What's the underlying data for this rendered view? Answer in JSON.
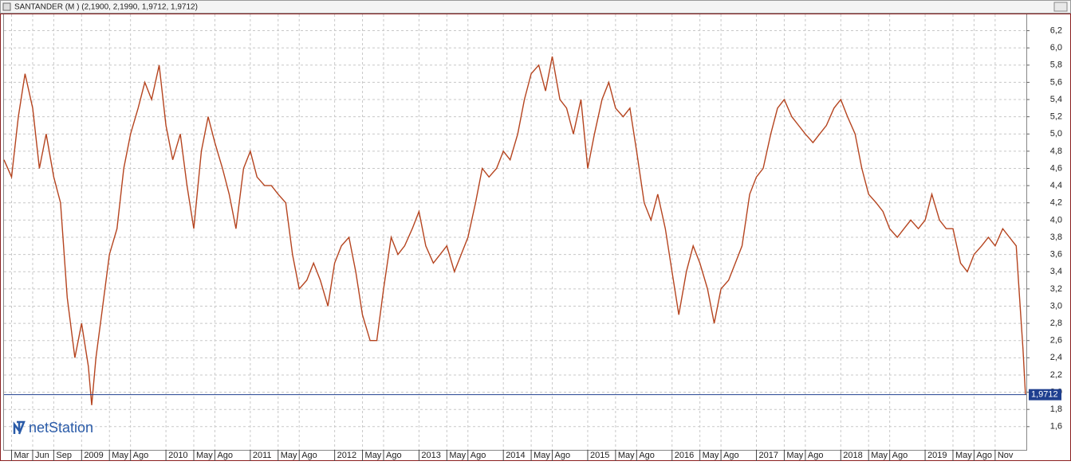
{
  "chart_data": {
    "type": "line",
    "title": "SANTANDER (M ) (2,1900, 2,1990, 1,9712, 1,9712)",
    "brand": "netStation",
    "grid": true,
    "xlim": [
      2008.08,
      2020.2
    ],
    "ylim": [
      1.33,
      6.39
    ],
    "yticks": [
      {
        "value": 1.6,
        "label": "1,6"
      },
      {
        "value": 1.8,
        "label": "1,8"
      },
      {
        "value": 2.0,
        "label": "2,0"
      },
      {
        "value": 2.2,
        "label": "2,2"
      },
      {
        "value": 2.4,
        "label": "2,4"
      },
      {
        "value": 2.6,
        "label": "2,6"
      },
      {
        "value": 2.8,
        "label": "2,8"
      },
      {
        "value": 3.0,
        "label": "3,0"
      },
      {
        "value": 3.2,
        "label": "3,2"
      },
      {
        "value": 3.4,
        "label": "3,4"
      },
      {
        "value": 3.6,
        "label": "3,6"
      },
      {
        "value": 3.8,
        "label": "3,8"
      },
      {
        "value": 4.0,
        "label": "4,0"
      },
      {
        "value": 4.2,
        "label": "4,2"
      },
      {
        "value": 4.4,
        "label": "4,4"
      },
      {
        "value": 4.6,
        "label": "4,6"
      },
      {
        "value": 4.8,
        "label": "4,8"
      },
      {
        "value": 5.0,
        "label": "5,0"
      },
      {
        "value": 5.2,
        "label": "5,2"
      },
      {
        "value": 5.4,
        "label": "5,4"
      },
      {
        "value": 5.6,
        "label": "5,6"
      },
      {
        "value": 5.8,
        "label": "5,8"
      },
      {
        "value": 6.0,
        "label": "6,0"
      },
      {
        "value": 6.2,
        "label": "6,2"
      }
    ],
    "xticks": [
      {
        "value": 2008.17,
        "label": "Mar"
      },
      {
        "value": 2008.42,
        "label": "Jun"
      },
      {
        "value": 2008.67,
        "label": "Sep"
      },
      2009,
      {
        "value": 2009.33,
        "label": "May"
      },
      {
        "value": 2009.58,
        "label": "Ago"
      },
      2010,
      {
        "value": 2010.33,
        "label": "May"
      },
      {
        "value": 2010.58,
        "label": "Ago"
      },
      2011,
      {
        "value": 2011.33,
        "label": "May"
      },
      {
        "value": 2011.58,
        "label": "Ago"
      },
      2012,
      {
        "value": 2012.33,
        "label": "May"
      },
      {
        "value": 2012.58,
        "label": "Ago"
      },
      2013,
      {
        "value": 2013.33,
        "label": "May"
      },
      {
        "value": 2013.58,
        "label": "Ago"
      },
      2014,
      {
        "value": 2014.33,
        "label": "May"
      },
      {
        "value": 2014.58,
        "label": "Ago"
      },
      2015,
      {
        "value": 2015.33,
        "label": "May"
      },
      {
        "value": 2015.58,
        "label": "Ago"
      },
      2016,
      {
        "value": 2016.33,
        "label": "May"
      },
      {
        "value": 2016.58,
        "label": "Ago"
      },
      2017,
      {
        "value": 2017.33,
        "label": "May"
      },
      {
        "value": 2017.58,
        "label": "Ago"
      },
      2018,
      {
        "value": 2018.33,
        "label": "May"
      },
      {
        "value": 2018.58,
        "label": "Ago"
      },
      2019,
      {
        "value": 2019.33,
        "label": "May"
      },
      {
        "value": 2019.58,
        "label": "Ago"
      },
      {
        "value": 2019.83,
        "label": "Nov"
      }
    ],
    "last_price": {
      "value": 1.9712,
      "label": "1,9712",
      "color": "#1f3f8f"
    },
    "x": [
      2008.08,
      2008.17,
      2008.25,
      2008.33,
      2008.42,
      2008.5,
      2008.58,
      2008.67,
      2008.75,
      2008.83,
      2008.92,
      2009.0,
      2009.08,
      2009.12,
      2009.17,
      2009.25,
      2009.33,
      2009.42,
      2009.5,
      2009.58,
      2009.67,
      2009.75,
      2009.83,
      2009.92,
      2010.0,
      2010.08,
      2010.17,
      2010.25,
      2010.33,
      2010.42,
      2010.5,
      2010.58,
      2010.67,
      2010.75,
      2010.83,
      2010.92,
      2011.0,
      2011.08,
      2011.17,
      2011.25,
      2011.33,
      2011.42,
      2011.5,
      2011.58,
      2011.67,
      2011.75,
      2011.83,
      2011.92,
      2012.0,
      2012.08,
      2012.17,
      2012.25,
      2012.33,
      2012.42,
      2012.5,
      2012.58,
      2012.67,
      2012.75,
      2012.83,
      2012.92,
      2013.0,
      2013.08,
      2013.17,
      2013.25,
      2013.33,
      2013.42,
      2013.5,
      2013.58,
      2013.67,
      2013.75,
      2013.83,
      2013.92,
      2014.0,
      2014.08,
      2014.17,
      2014.25,
      2014.33,
      2014.42,
      2014.5,
      2014.58,
      2014.67,
      2014.75,
      2014.83,
      2014.92,
      2015.0,
      2015.08,
      2015.17,
      2015.25,
      2015.33,
      2015.42,
      2015.5,
      2015.58,
      2015.67,
      2015.75,
      2015.83,
      2015.92,
      2016.0,
      2016.08,
      2016.17,
      2016.25,
      2016.33,
      2016.42,
      2016.5,
      2016.58,
      2016.67,
      2016.75,
      2016.83,
      2016.92,
      2017.0,
      2017.08,
      2017.17,
      2017.25,
      2017.33,
      2017.42,
      2017.5,
      2017.58,
      2017.67,
      2017.75,
      2017.83,
      2017.92,
      2018.0,
      2018.08,
      2018.17,
      2018.25,
      2018.33,
      2018.42,
      2018.5,
      2018.58,
      2018.67,
      2018.75,
      2018.83,
      2018.92,
      2019.0,
      2019.08,
      2019.17,
      2019.25,
      2019.33,
      2019.42,
      2019.5,
      2019.58,
      2019.67,
      2019.75,
      2019.83,
      2019.92,
      2020.0,
      2020.08,
      2020.12,
      2020.16,
      2020.19
    ],
    "series": [
      {
        "color": "#b5441f",
        "values": [
          4.7,
          4.5,
          5.2,
          5.7,
          5.3,
          4.6,
          5.0,
          4.5,
          4.2,
          3.1,
          2.4,
          2.8,
          2.3,
          1.85,
          2.4,
          3.0,
          3.6,
          3.9,
          4.6,
          5.0,
          5.3,
          5.6,
          5.4,
          5.8,
          5.1,
          4.7,
          5.0,
          4.4,
          3.9,
          4.8,
          5.2,
          4.9,
          4.6,
          4.3,
          3.9,
          4.6,
          4.8,
          4.5,
          4.4,
          4.4,
          4.3,
          4.2,
          3.6,
          3.2,
          3.3,
          3.5,
          3.3,
          3.0,
          3.5,
          3.7,
          3.8,
          3.4,
          2.9,
          2.6,
          2.6,
          3.2,
          3.8,
          3.6,
          3.7,
          3.9,
          4.1,
          3.7,
          3.5,
          3.6,
          3.7,
          3.4,
          3.6,
          3.8,
          4.2,
          4.6,
          4.5,
          4.6,
          4.8,
          4.7,
          5.0,
          5.4,
          5.7,
          5.8,
          5.5,
          5.9,
          5.4,
          5.3,
          5.0,
          5.4,
          4.6,
          5.0,
          5.4,
          5.6,
          5.3,
          5.2,
          5.3,
          4.8,
          4.2,
          4.0,
          4.3,
          3.9,
          3.4,
          2.9,
          3.4,
          3.7,
          3.5,
          3.2,
          2.8,
          3.2,
          3.3,
          3.5,
          3.7,
          4.3,
          4.5,
          4.6,
          5.0,
          5.3,
          5.4,
          5.2,
          5.1,
          5.0,
          4.9,
          5.0,
          5.1,
          5.3,
          5.4,
          5.2,
          5.0,
          4.6,
          4.3,
          4.2,
          4.1,
          3.9,
          3.8,
          3.9,
          4.0,
          3.9,
          4.0,
          4.3,
          4.0,
          3.9,
          3.9,
          3.5,
          3.4,
          3.6,
          3.7,
          3.8,
          3.7,
          3.9,
          3.8,
          3.7,
          3.1,
          2.5,
          1.97
        ]
      }
    ]
  }
}
